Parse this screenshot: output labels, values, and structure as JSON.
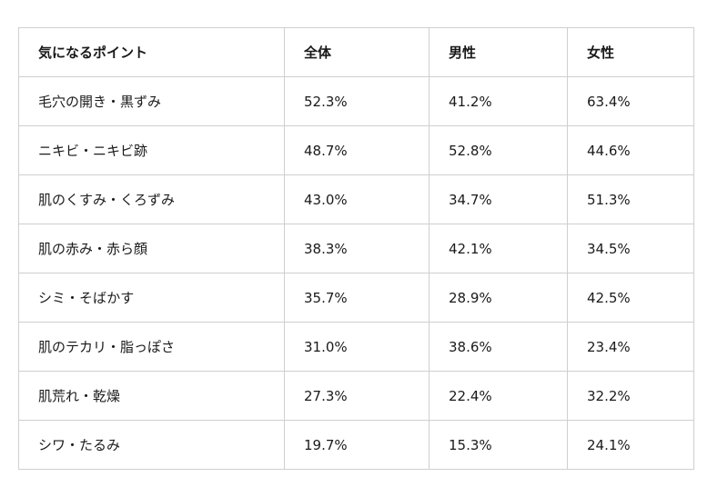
{
  "chart_data": {
    "type": "table",
    "columns": [
      "気になるポイント",
      "全体",
      "男性",
      "女性"
    ],
    "rows": [
      [
        "毛穴の開き・黒ずみ",
        "52.3%",
        "41.2%",
        "63.4%"
      ],
      [
        "ニキビ・ニキビ跡",
        "48.7%",
        "52.8%",
        "44.6%"
      ],
      [
        "肌のくすみ・くろずみ",
        "43.0%",
        "34.7%",
        "51.3%"
      ],
      [
        "肌の赤み・赤ら顔",
        "38.3%",
        "42.1%",
        "34.5%"
      ],
      [
        "シミ・そばかす",
        "35.7%",
        "28.9%",
        "42.5%"
      ],
      [
        "肌のテカリ・脂っぽさ",
        "31.0%",
        "38.6%",
        "23.4%"
      ],
      [
        "肌荒れ・乾燥",
        "27.3%",
        "22.4%",
        "32.2%"
      ],
      [
        "シワ・たるみ",
        "19.7%",
        "15.3%",
        "24.1%"
      ]
    ]
  },
  "colors": {
    "text": "#1a1a1a",
    "border": "#cfcfcf",
    "background": "#ffffff"
  }
}
